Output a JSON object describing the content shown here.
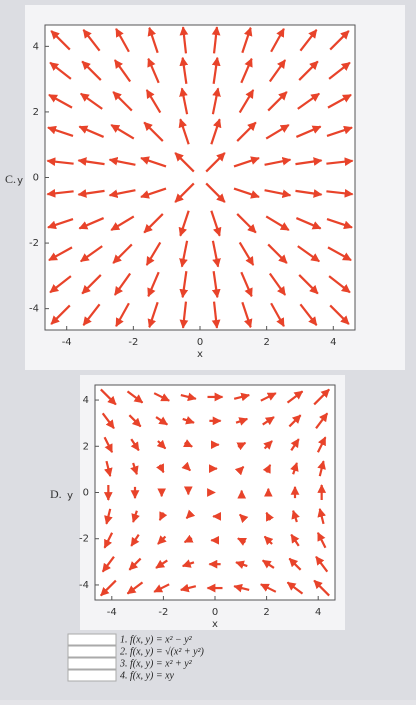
{
  "plots": [
    {
      "label": "C.",
      "y_label": "y",
      "x_label": "x",
      "yticks": [
        "4",
        "2",
        "0",
        "-2",
        "-4"
      ],
      "xticks": [
        "-4",
        "-2",
        "0",
        "2",
        "4"
      ]
    },
    {
      "label": "D.",
      "y_label": "y",
      "x_label": "x",
      "yticks": [
        "4",
        "2",
        "0",
        "-2",
        "-4"
      ],
      "xticks": [
        "-4",
        "-2",
        "0",
        "2",
        "4"
      ]
    }
  ],
  "options": [
    "1. f(x, y) = x² − y²",
    "2. f(x, y) = √(x² + y²)",
    "3. f(x, y) = x² + y²",
    "4. f(x, y) = xy"
  ]
}
